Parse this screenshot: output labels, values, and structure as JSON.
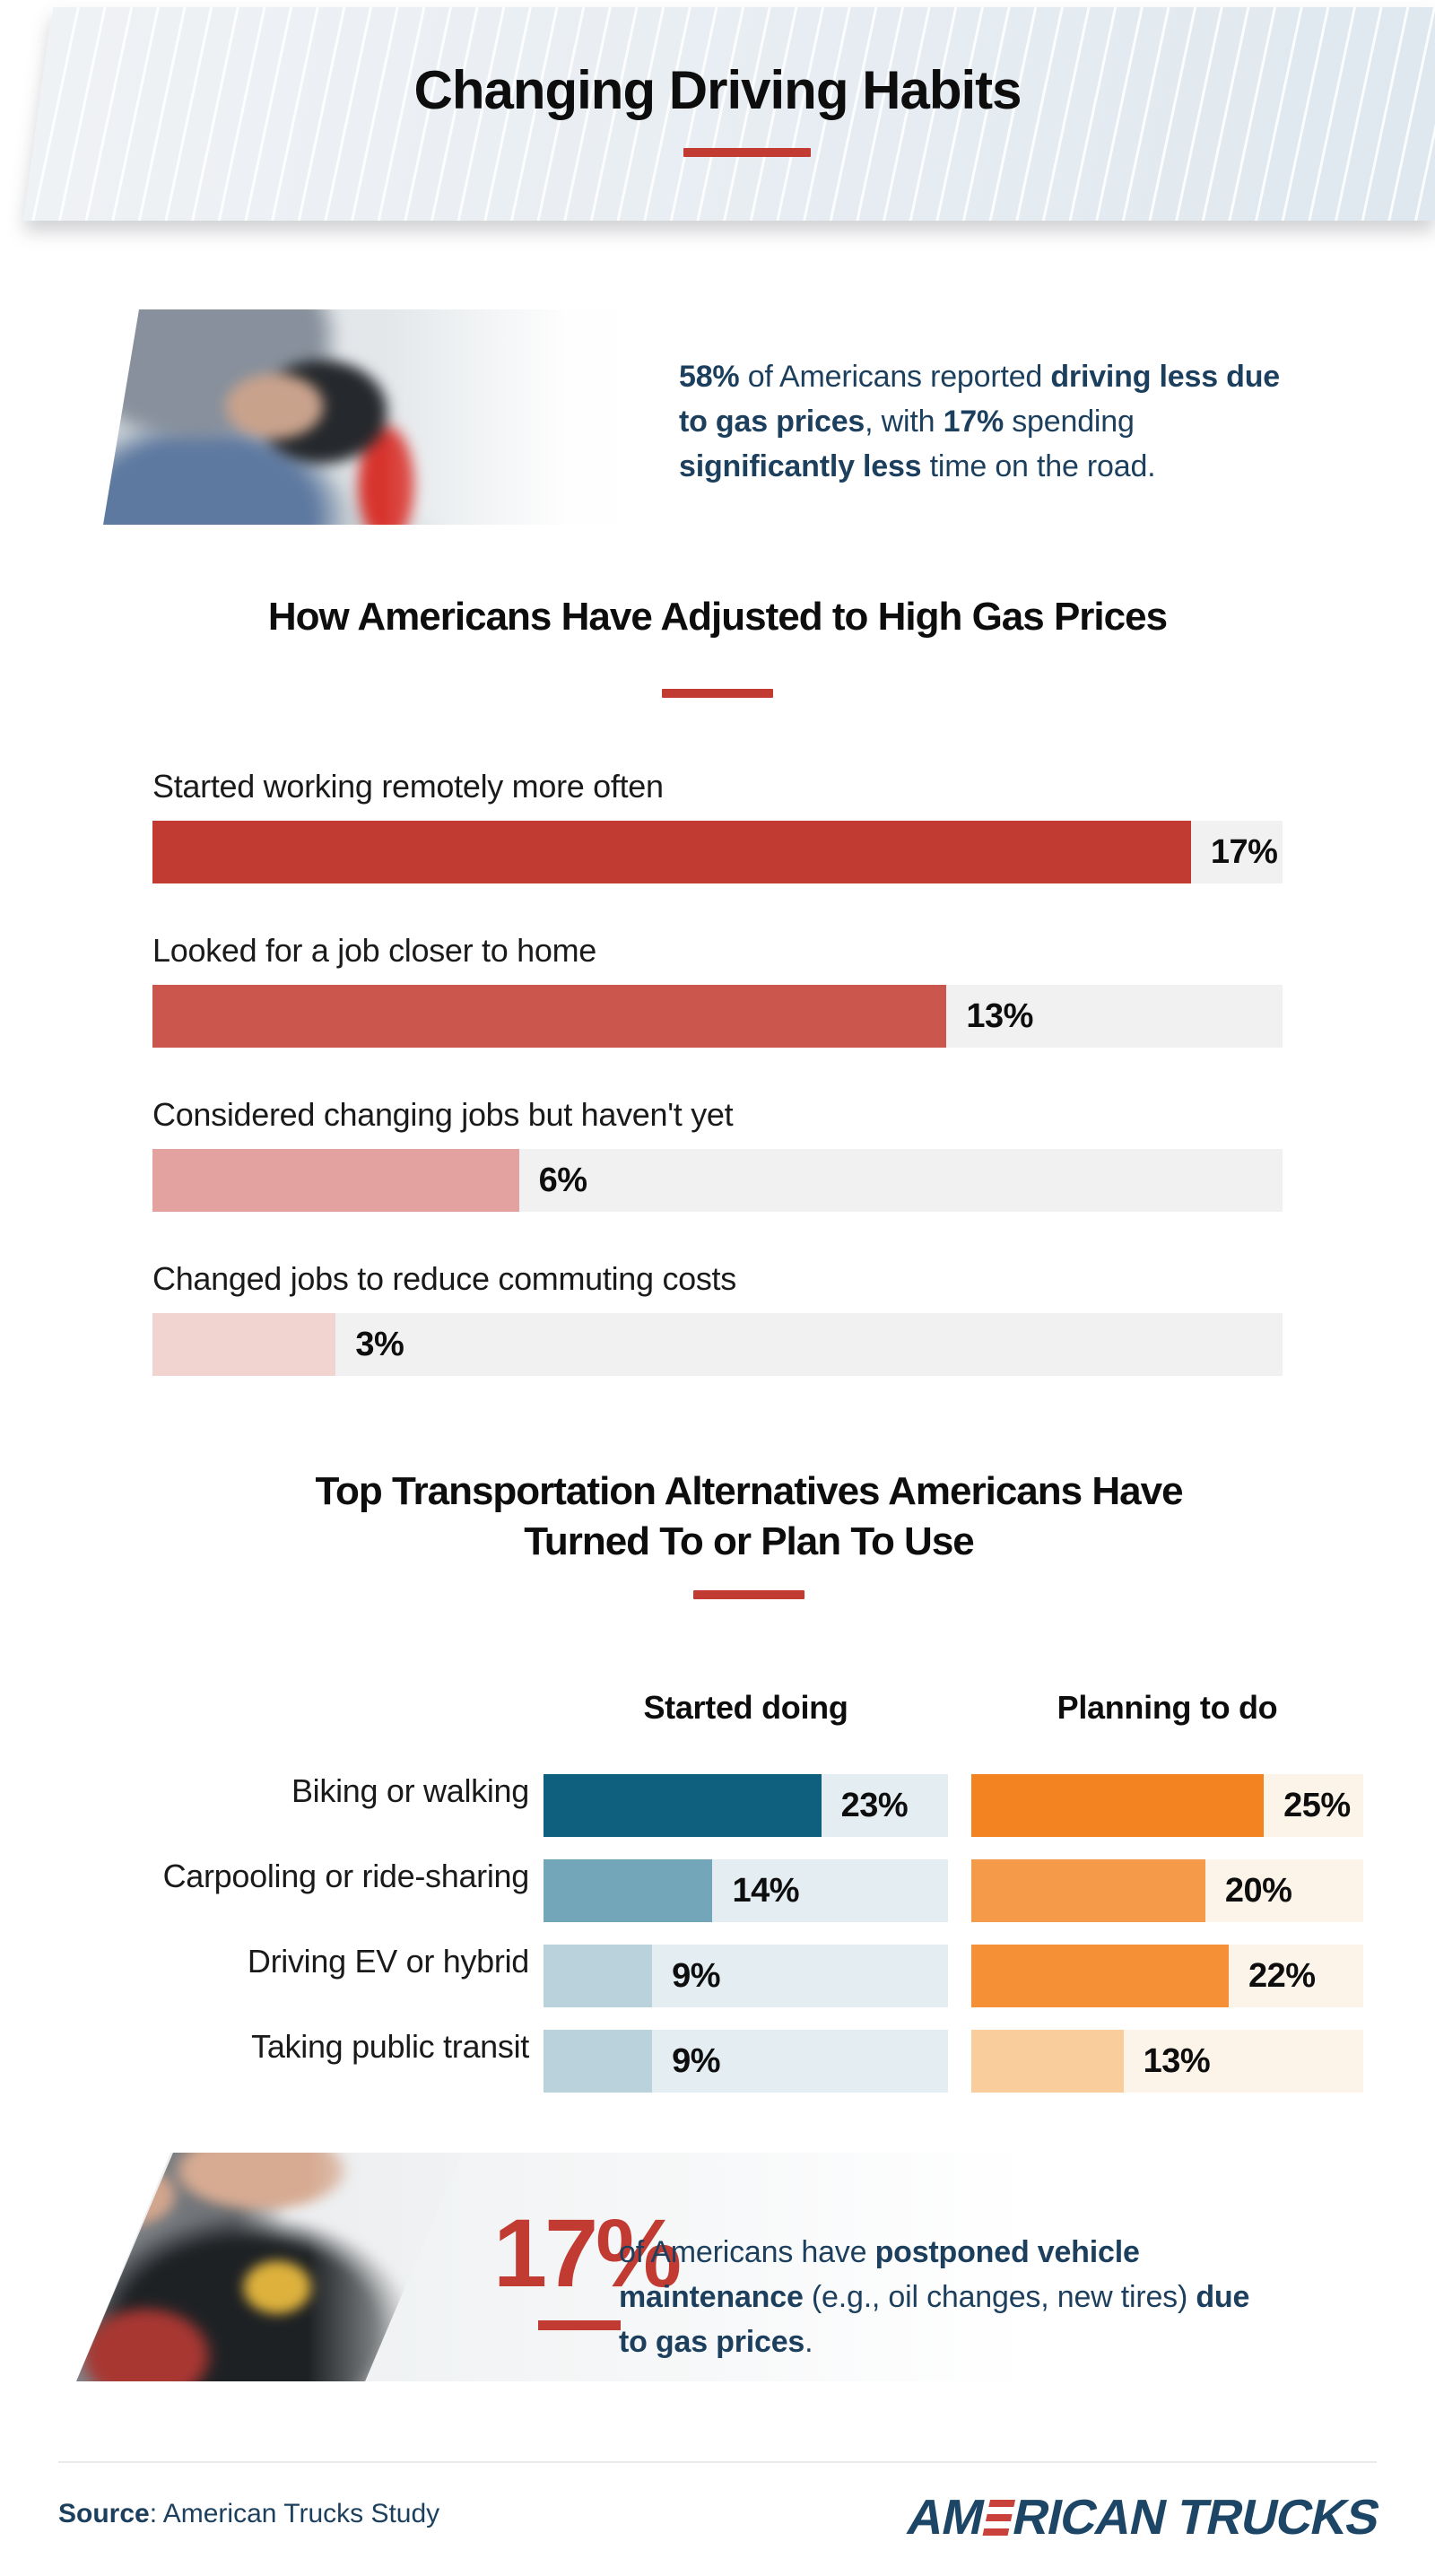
{
  "colors": {
    "accent_red": "#c23b33",
    "navy_text": "#1d3f5e",
    "logo_navy": "#1c4566",
    "logo_red": "#c8413b"
  },
  "header": {
    "title": "Changing Driving Habits"
  },
  "hero": {
    "runs": [
      {
        "t": "58%",
        "b": true
      },
      {
        "t": " of Americans reported ",
        "b": false
      },
      {
        "t": "driving less due to gas prices",
        "b": true
      },
      {
        "t": ", with ",
        "b": false
      },
      {
        "t": "17%",
        "b": true
      },
      {
        "t": " spending ",
        "b": false
      },
      {
        "t": "significantly less",
        "b": true
      },
      {
        "t": " time on the road.",
        "b": false
      }
    ]
  },
  "chart_data": [
    {
      "type": "bar",
      "orientation": "horizontal",
      "title": "How Americans Have Adjusted to High Gas Prices",
      "categories": [
        "Started working remotely more often",
        "Looked for a job closer to home",
        "Considered changing jobs but haven't yet",
        "Changed jobs to reduce commuting costs"
      ],
      "values": [
        17,
        13,
        6,
        3
      ],
      "unit": "%",
      "xlim": [
        0,
        18.5
      ],
      "grid": false,
      "bar_colors": [
        "#c23b33",
        "#cb564e",
        "#e3a29f",
        "#f1d3d0"
      ],
      "track_color": "#f1f1f2"
    },
    {
      "type": "bar",
      "orientation": "horizontal",
      "title": "Top Transportation Alternatives Americans Have Turned To or Plan To Use",
      "categories": [
        "Biking or walking",
        "Carpooling or ride-sharing",
        "Driving EV or hybrid",
        "Taking public transit"
      ],
      "series": [
        {
          "name": "Started doing",
          "values": [
            23,
            14,
            9,
            9
          ],
          "bar_colors": [
            "#0f5f7f",
            "#74a6ba",
            "#b9d2dc",
            "#b9d2dc"
          ],
          "track_color": "#e4edf1"
        },
        {
          "name": "Planning to do",
          "values": [
            25,
            20,
            22,
            13
          ],
          "bar_colors": [
            "#f28320",
            "#f59a48",
            "#f69036",
            "#f9cd9c"
          ],
          "track_color": "#fdf4e9"
        }
      ],
      "unit": "%",
      "xlim": [
        0,
        33.5
      ],
      "grid": false,
      "legend_position": "column-headers"
    }
  ],
  "stat": {
    "value": "17%",
    "runs": [
      {
        "t": "of Americans have ",
        "b": false
      },
      {
        "t": "postponed vehicle maintenance",
        "b": true
      },
      {
        "t": " (e.g., oil changes, new tires) ",
        "b": false
      },
      {
        "t": "due to gas prices",
        "b": true
      },
      {
        "t": ".",
        "b": false
      }
    ]
  },
  "footer": {
    "source_bold": "Source",
    "source_rest": ": American Trucks Study",
    "brand": "AMERICAN TRUCKS",
    "brand_prefix": "AM",
    "brand_suffix": "RICAN TRUCKS"
  }
}
